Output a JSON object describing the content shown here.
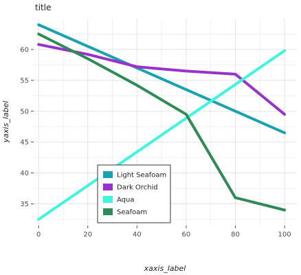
{
  "chart_data": {
    "type": "line",
    "title": "title",
    "xlabel": "xaxis_label",
    "ylabel": "yaxis_label",
    "xlim": [
      -2,
      105
    ],
    "ylim": [
      31.5,
      65
    ],
    "xticks": [
      0,
      20,
      40,
      60,
      80,
      100
    ],
    "yticks": [
      35,
      40,
      45,
      50,
      55,
      60
    ],
    "grid": true,
    "legend_position": "bottom-center",
    "series": [
      {
        "name": "Light Seafoam",
        "color": "#1aa2b0",
        "x": [
          0,
          100
        ],
        "y": [
          64.0,
          46.5
        ]
      },
      {
        "name": "Dark Orchid",
        "color": "#9932cc",
        "x": [
          0,
          20,
          40,
          60,
          80,
          100
        ],
        "y": [
          60.8,
          59.2,
          57.2,
          56.5,
          56.0,
          49.5
        ]
      },
      {
        "name": "Aqua",
        "color": "#3ff5df",
        "x": [
          0,
          100
        ],
        "y": [
          32.5,
          59.8
        ]
      },
      {
        "name": "Seafoam",
        "color": "#2e8b57",
        "x": [
          0,
          20,
          40,
          60,
          80,
          100
        ],
        "y": [
          62.5,
          58.5,
          54.2,
          49.5,
          36.0,
          34.0
        ]
      }
    ]
  }
}
